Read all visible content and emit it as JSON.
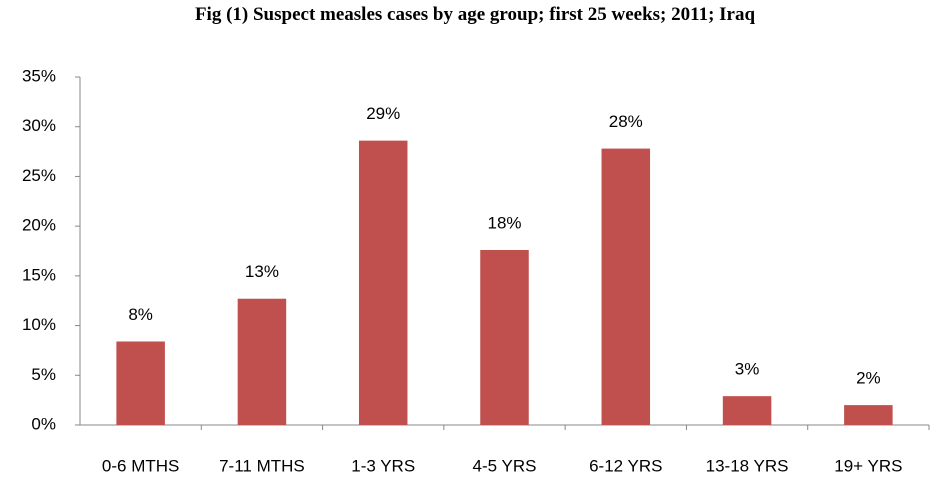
{
  "chart_data": {
    "type": "bar",
    "title": "Fig (1) Suspect measles cases by age group;  first 25 weeks; 2011; Iraq",
    "categories": [
      "0-6 MTHS",
      "7-11 MTHS",
      "1-3 YRS",
      "4-5 YRS",
      "6-12 YRS",
      "13-18 YRS",
      "19+ YRS"
    ],
    "values": [
      8.4,
      12.7,
      28.6,
      17.6,
      27.8,
      2.9,
      2.0
    ],
    "value_labels": [
      "8%",
      "13%",
      "29%",
      "18%",
      "28%",
      "3%",
      "2%"
    ],
    "color": "#c0504d",
    "ylim": [
      0,
      35
    ],
    "yticks": [
      {
        "value": 0,
        "label": "0%"
      },
      {
        "value": 5,
        "label": "5%"
      },
      {
        "value": 10,
        "label": "10%"
      },
      {
        "value": 15,
        "label": "15%"
      },
      {
        "value": 20,
        "label": "20%"
      },
      {
        "value": 25,
        "label": "25%"
      },
      {
        "value": 30,
        "label": "30%"
      },
      {
        "value": 35,
        "label": "35%"
      }
    ],
    "grid": false
  }
}
